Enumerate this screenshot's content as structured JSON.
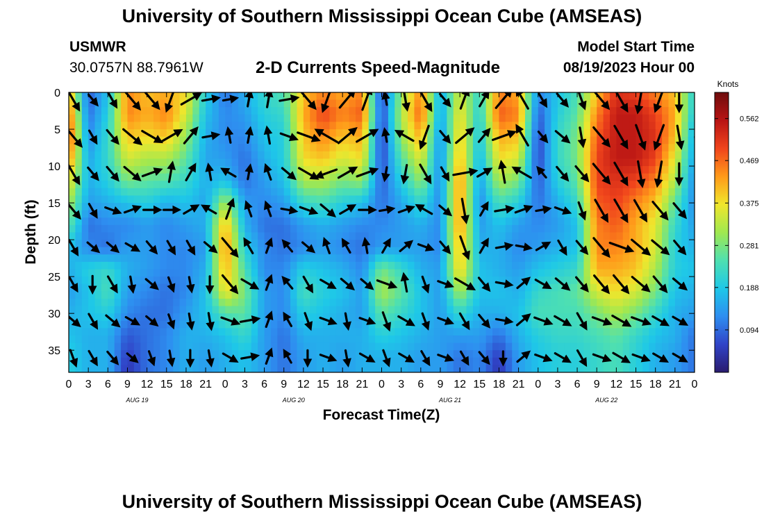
{
  "header": {
    "title": "University of Southern Mississippi Ocean Cube (AMSEAS)",
    "footer_title": "University of Southern Mississippi Ocean Cube (AMSEAS)",
    "station": "USMWR",
    "coordinates": "30.0757N  88.7961W",
    "subtitle": "2-D Currents Speed-Magnitude",
    "start_label": "Model Start Time",
    "start_value": "08/19/2023 Hour 00"
  },
  "chart_data": {
    "type": "heatmap",
    "title": "2-D Currents Speed-Magnitude",
    "xlabel": "Forecast Time(Z)",
    "ylabel": "Depth (ft)",
    "x_ticks": [
      "0",
      "3",
      "6",
      "9",
      "12",
      "15",
      "18",
      "21",
      "0",
      "3",
      "6",
      "9",
      "12",
      "15",
      "18",
      "21",
      "0",
      "3",
      "6",
      "9",
      "12",
      "15",
      "18",
      "21",
      "0",
      "3",
      "6",
      "9",
      "12",
      "15",
      "18",
      "21",
      "0"
    ],
    "xlim_hours": [
      0,
      96
    ],
    "day_labels": [
      {
        "label": "AUG 19",
        "hour": 10.5
      },
      {
        "label": "AUG 20",
        "hour": 34.5
      },
      {
        "label": "AUG 21",
        "hour": 58.5
      },
      {
        "label": "AUG 22",
        "hour": 82.5
      }
    ],
    "y_ticks": [
      0,
      5,
      10,
      15,
      20,
      25,
      30,
      35
    ],
    "ylim_ft": [
      0,
      38
    ],
    "colorbar": {
      "label": "Knots",
      "ticks": [
        0.094,
        0.188,
        0.281,
        0.375,
        0.469,
        0.562
      ],
      "range": [
        0,
        0.62
      ],
      "colors": [
        "#2a1c6e",
        "#3044c8",
        "#2e8ef0",
        "#1ec8e8",
        "#4fe0b0",
        "#a0e850",
        "#f0e62c",
        "#ff9a1a",
        "#f0441c",
        "#b81414",
        "#6e0c0c"
      ]
    },
    "speed_knots": {
      "hours": [
        0,
        3,
        6,
        9,
        12,
        15,
        18,
        21,
        24,
        27,
        30,
        33,
        36,
        39,
        42,
        45,
        48,
        51,
        54,
        57,
        60,
        63,
        66,
        69,
        72,
        75,
        78,
        81,
        84,
        87,
        90,
        93,
        96
      ],
      "depths_ft": [
        0,
        3,
        6,
        9,
        12,
        15,
        18,
        21,
        24,
        27,
        30,
        33,
        36,
        38
      ],
      "values": [
        [
          0.42,
          0.08,
          0.18,
          0.45,
          0.4,
          0.42,
          0.38,
          0.2,
          0.1,
          0.16,
          0.22,
          0.25,
          0.4,
          0.45,
          0.42,
          0.45,
          0.05,
          0.3,
          0.45,
          0.15,
          0.35,
          0.22,
          0.45,
          0.42,
          0.12,
          0.18,
          0.24,
          0.4,
          0.52,
          0.5,
          0.45,
          0.4,
          0.2
        ],
        [
          0.48,
          0.1,
          0.2,
          0.45,
          0.42,
          0.45,
          0.35,
          0.18,
          0.12,
          0.14,
          0.2,
          0.22,
          0.42,
          0.5,
          0.45,
          0.48,
          0.06,
          0.32,
          0.48,
          0.14,
          0.38,
          0.2,
          0.48,
          0.45,
          0.08,
          0.2,
          0.26,
          0.45,
          0.55,
          0.55,
          0.5,
          0.42,
          0.18
        ],
        [
          0.5,
          0.12,
          0.22,
          0.4,
          0.38,
          0.4,
          0.3,
          0.16,
          0.12,
          0.12,
          0.18,
          0.2,
          0.4,
          0.45,
          0.4,
          0.42,
          0.05,
          0.3,
          0.42,
          0.12,
          0.4,
          0.18,
          0.42,
          0.4,
          0.06,
          0.22,
          0.28,
          0.48,
          0.55,
          0.55,
          0.52,
          0.4,
          0.15
        ],
        [
          0.45,
          0.15,
          0.22,
          0.35,
          0.32,
          0.32,
          0.26,
          0.15,
          0.14,
          0.1,
          0.16,
          0.2,
          0.38,
          0.4,
          0.35,
          0.38,
          0.06,
          0.25,
          0.36,
          0.12,
          0.42,
          0.16,
          0.38,
          0.35,
          0.06,
          0.22,
          0.28,
          0.5,
          0.55,
          0.55,
          0.5,
          0.36,
          0.14
        ],
        [
          0.38,
          0.16,
          0.2,
          0.28,
          0.26,
          0.25,
          0.22,
          0.16,
          0.18,
          0.1,
          0.14,
          0.18,
          0.32,
          0.32,
          0.28,
          0.3,
          0.08,
          0.2,
          0.3,
          0.12,
          0.45,
          0.14,
          0.32,
          0.28,
          0.08,
          0.2,
          0.26,
          0.5,
          0.52,
          0.5,
          0.45,
          0.32,
          0.12
        ],
        [
          0.32,
          0.14,
          0.16,
          0.18,
          0.2,
          0.16,
          0.18,
          0.15,
          0.32,
          0.14,
          0.12,
          0.14,
          0.22,
          0.24,
          0.2,
          0.18,
          0.1,
          0.15,
          0.22,
          0.12,
          0.45,
          0.12,
          0.24,
          0.2,
          0.1,
          0.16,
          0.22,
          0.48,
          0.5,
          0.45,
          0.4,
          0.26,
          0.12
        ],
        [
          0.26,
          0.1,
          0.12,
          0.12,
          0.14,
          0.12,
          0.14,
          0.16,
          0.42,
          0.16,
          0.1,
          0.1,
          0.14,
          0.16,
          0.14,
          0.12,
          0.12,
          0.14,
          0.16,
          0.12,
          0.45,
          0.14,
          0.18,
          0.14,
          0.12,
          0.14,
          0.18,
          0.45,
          0.48,
          0.42,
          0.36,
          0.22,
          0.14
        ],
        [
          0.18,
          0.12,
          0.1,
          0.14,
          0.14,
          0.12,
          0.12,
          0.14,
          0.45,
          0.2,
          0.12,
          0.1,
          0.12,
          0.14,
          0.12,
          0.1,
          0.14,
          0.14,
          0.14,
          0.12,
          0.42,
          0.16,
          0.16,
          0.12,
          0.14,
          0.16,
          0.18,
          0.45,
          0.45,
          0.42,
          0.35,
          0.2,
          0.16
        ],
        [
          0.16,
          0.2,
          0.22,
          0.16,
          0.14,
          0.12,
          0.12,
          0.16,
          0.42,
          0.24,
          0.12,
          0.12,
          0.2,
          0.18,
          0.16,
          0.12,
          0.28,
          0.22,
          0.16,
          0.14,
          0.4,
          0.18,
          0.16,
          0.14,
          0.18,
          0.2,
          0.22,
          0.42,
          0.42,
          0.4,
          0.32,
          0.2,
          0.18
        ],
        [
          0.14,
          0.18,
          0.24,
          0.14,
          0.12,
          0.1,
          0.12,
          0.18,
          0.38,
          0.28,
          0.14,
          0.12,
          0.24,
          0.2,
          0.18,
          0.14,
          0.32,
          0.26,
          0.18,
          0.14,
          0.32,
          0.18,
          0.18,
          0.16,
          0.22,
          0.24,
          0.26,
          0.35,
          0.38,
          0.35,
          0.28,
          0.18,
          0.16
        ],
        [
          0.16,
          0.18,
          0.2,
          0.12,
          0.1,
          0.1,
          0.14,
          0.18,
          0.25,
          0.26,
          0.14,
          0.12,
          0.2,
          0.18,
          0.16,
          0.14,
          0.26,
          0.22,
          0.18,
          0.14,
          0.22,
          0.16,
          0.16,
          0.18,
          0.24,
          0.24,
          0.24,
          0.28,
          0.32,
          0.28,
          0.22,
          0.16,
          0.14
        ],
        [
          0.18,
          0.16,
          0.16,
          0.08,
          0.1,
          0.12,
          0.16,
          0.16,
          0.18,
          0.22,
          0.14,
          0.1,
          0.16,
          0.16,
          0.16,
          0.16,
          0.2,
          0.18,
          0.16,
          0.14,
          0.14,
          0.14,
          0.1,
          0.16,
          0.2,
          0.22,
          0.22,
          0.24,
          0.26,
          0.22,
          0.18,
          0.16,
          0.1
        ],
        [
          0.2,
          0.16,
          0.16,
          0.05,
          0.1,
          0.12,
          0.16,
          0.14,
          0.16,
          0.18,
          0.14,
          0.1,
          0.14,
          0.16,
          0.14,
          0.16,
          0.16,
          0.16,
          0.14,
          0.14,
          0.1,
          0.12,
          0.05,
          0.14,
          0.18,
          0.2,
          0.2,
          0.22,
          0.24,
          0.2,
          0.16,
          0.14,
          0.1
        ],
        [
          0.2,
          0.16,
          0.16,
          0.04,
          0.1,
          0.12,
          0.16,
          0.14,
          0.16,
          0.18,
          0.14,
          0.1,
          0.14,
          0.16,
          0.14,
          0.16,
          0.16,
          0.16,
          0.14,
          0.14,
          0.1,
          0.12,
          0.04,
          0.14,
          0.18,
          0.2,
          0.2,
          0.22,
          0.24,
          0.2,
          0.16,
          0.14,
          0.1
        ]
      ]
    },
    "current_direction_deg": {
      "hours": [
        0,
        3,
        6,
        9,
        12,
        15,
        18,
        21,
        24,
        27,
        30,
        33,
        36,
        39,
        42,
        45,
        48,
        51,
        54,
        57,
        60,
        63,
        66,
        69,
        72,
        75,
        78,
        81,
        84,
        87,
        90,
        93,
        96
      ],
      "depths_ft": [
        0,
        5,
        10,
        15,
        20,
        25,
        30,
        35
      ],
      "values": [
        [
          150,
          140,
          150,
          140,
          140,
          200,
          60,
          80,
          80,
          10,
          10,
          80,
          140,
          200,
          40,
          20,
          350,
          170,
          150,
          140,
          20,
          30,
          40,
          330,
          150,
          140,
          160,
          140,
          150,
          190,
          200,
          180,
          180
        ],
        [
          140,
          150,
          140,
          130,
          120,
          60,
          40,
          80,
          350,
          10,
          350,
          110,
          110,
          300,
          50,
          60,
          350,
          300,
          200,
          140,
          50,
          40,
          70,
          330,
          140,
          130,
          170,
          140,
          150,
          160,
          200,
          170,
          200
        ],
        [
          150,
          140,
          140,
          130,
          70,
          10,
          30,
          350,
          300,
          10,
          340,
          130,
          120,
          250,
          60,
          70,
          190,
          190,
          150,
          150,
          80,
          60,
          350,
          300,
          320,
          140,
          140,
          140,
          150,
          170,
          190,
          180,
          180
        ],
        [
          140,
          150,
          110,
          70,
          90,
          90,
          60,
          300,
          20,
          340,
          340,
          100,
          110,
          130,
          60,
          90,
          80,
          70,
          300,
          130,
          170,
          30,
          80,
          70,
          80,
          110,
          160,
          150,
          150,
          150,
          140,
          140,
          160
        ],
        [
          150,
          130,
          130,
          120,
          140,
          150,
          150,
          130,
          140,
          330,
          20,
          320,
          130,
          340,
          330,
          350,
          30,
          50,
          110,
          140,
          160,
          30,
          80,
          100,
          60,
          150,
          140,
          140,
          110,
          130,
          130,
          140,
          150
        ],
        [
          150,
          180,
          150,
          170,
          130,
          160,
          170,
          180,
          140,
          120,
          20,
          320,
          150,
          120,
          130,
          130,
          110,
          350,
          160,
          110,
          120,
          140,
          100,
          50,
          120,
          130,
          140,
          140,
          140,
          130,
          140,
          130,
          170
        ],
        [
          130,
          150,
          130,
          120,
          130,
          160,
          170,
          170,
          110,
          80,
          20,
          330,
          160,
          110,
          170,
          110,
          160,
          120,
          160,
          110,
          150,
          140,
          100,
          50,
          110,
          120,
          150,
          110,
          120,
          110,
          120,
          120,
          160
        ],
        [
          160,
          150,
          140,
          130,
          160,
          170,
          180,
          170,
          120,
          80,
          20,
          330,
          180,
          110,
          170,
          120,
          160,
          120,
          150,
          110,
          150,
          140,
          180,
          50,
          110,
          120,
          150,
          110,
          120,
          110,
          120,
          120,
          200
        ]
      ]
    }
  }
}
